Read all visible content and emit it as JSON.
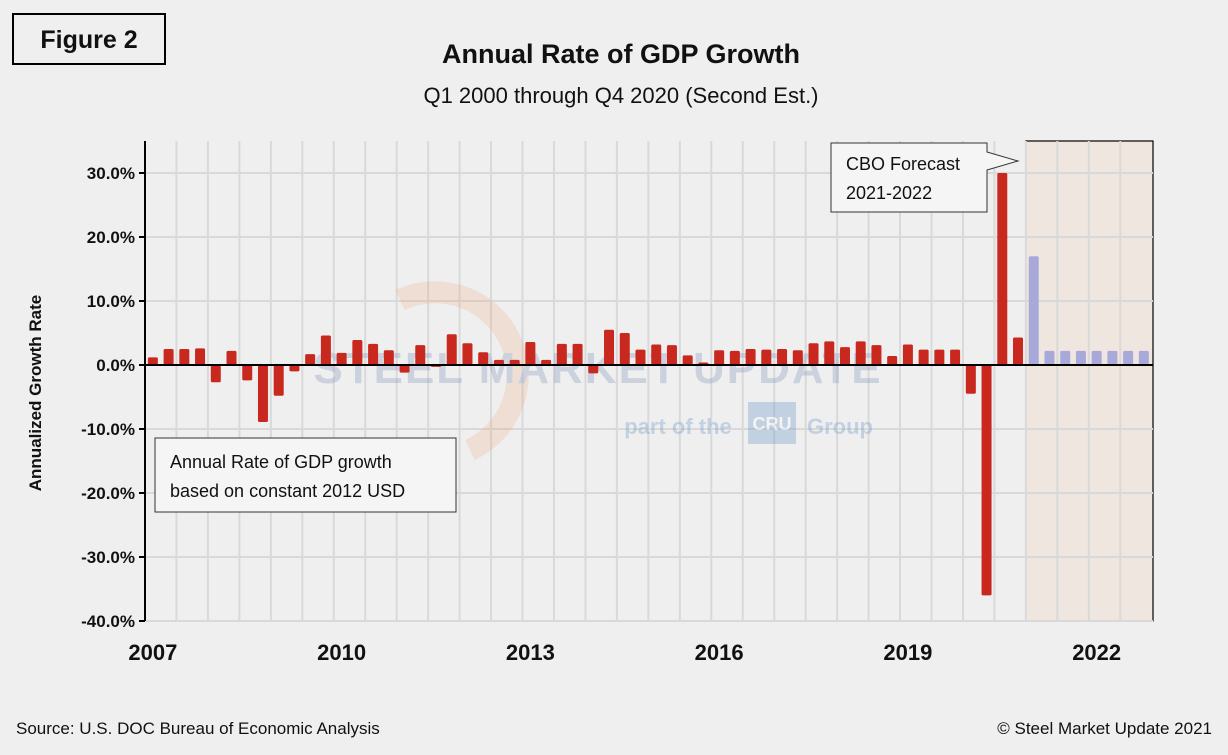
{
  "figure_label": "Figure 2",
  "source": "Source: U.S. DOC Bureau of Economic Analysis",
  "copyright": "© Steel Market Update 2021",
  "watermark": {
    "line1": "STEEL MARKET UPDATE",
    "line2a": "part of the",
    "line2b": "CRU",
    "line2c": "Group"
  },
  "colors": {
    "actual": "#c8281e",
    "forecast": "#a9a9d9",
    "forecast_shade": "#efe6e0",
    "background": "#efefef",
    "grid": "#d9d9d9"
  },
  "chart_data": {
    "type": "bar",
    "title": "Annual Rate of GDP Growth",
    "subtitle": "Q1 2000 through Q4 2020 (Second Est.)",
    "ylabel": "Annualized Growth Rate",
    "xlabel": "",
    "ylim": [
      -40,
      35
    ],
    "yticks": [
      30,
      20,
      10,
      0,
      -10,
      -20,
      -30,
      -40
    ],
    "ytick_labels": [
      "30.0%",
      "20.0%",
      "10.0%",
      "0.0%",
      "-10.0%",
      "-20.0%",
      "-30.0%",
      "-40.0%"
    ],
    "xtick_labels": [
      "2007",
      "2010",
      "2013",
      "2016",
      "2019",
      "2022"
    ],
    "grid": true,
    "start": "2007 Q1",
    "frequency": "quarterly",
    "series": [
      {
        "values": [
          1.2,
          2.5,
          2.5,
          2.6,
          -2.7,
          2.2,
          -2.4,
          -8.9,
          -4.8,
          -1.0,
          1.7,
          4.6,
          1.9,
          3.9,
          3.3,
          2.3,
          -1.2,
          3.1,
          -0.3,
          4.8,
          3.4,
          2.0,
          0.8,
          0.8,
          3.6,
          0.8,
          3.3,
          3.3,
          -1.3,
          5.5,
          5.0,
          2.4,
          3.2,
          3.1,
          1.5,
          0.4,
          2.3,
          2.2,
          2.5,
          2.4,
          2.5,
          2.3,
          3.4,
          3.7,
          2.8,
          3.7,
          3.1,
          1.4,
          3.2,
          2.4,
          2.4,
          2.4,
          -4.5,
          -36.0,
          30.0,
          4.3
        ]
      },
      {
        "values": [
          17.0,
          2.2,
          2.2,
          2.2,
          2.2,
          2.2,
          2.2,
          2.2
        ],
        "start": "2021 Q1"
      }
    ],
    "annotations": [
      {
        "text": [
          "Annual Rate of GDP  growth",
          "based on constant 2012 USD"
        ]
      },
      {
        "text": [
          "CBO Forecast",
          "2021-2022"
        ],
        "target": "forecast region 2021-2022"
      }
    ]
  }
}
